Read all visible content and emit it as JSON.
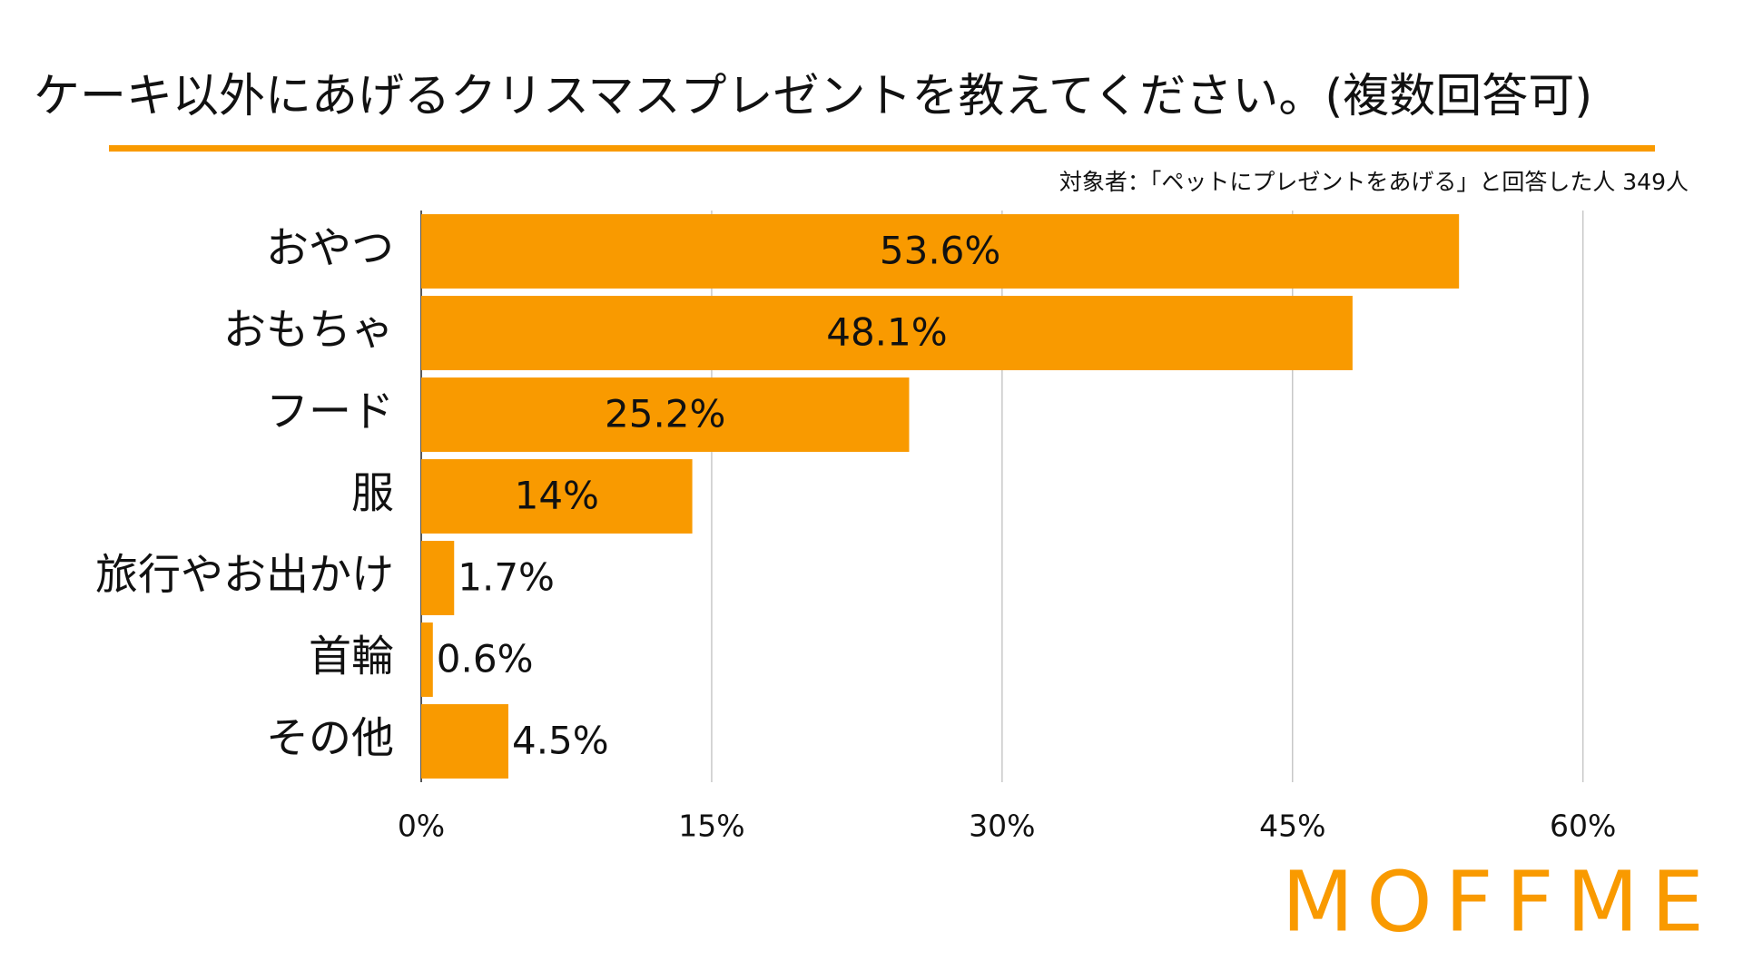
{
  "chart_data": {
    "type": "bar",
    "orientation": "horizontal",
    "title": "ケーキ以外にあげるクリスマスプレゼントを教えてください。(複数回答可)",
    "subtitle": "対象者：「ペットにプレゼントをあげる」と回答した人 349人",
    "categories": [
      "おやつ",
      "おもちゃ",
      "フード",
      "服",
      "旅行やお出かけ",
      "首輪",
      "その他"
    ],
    "values": [
      53.6,
      48.1,
      25.2,
      14,
      1.7,
      0.6,
      4.5
    ],
    "value_labels": [
      "53.6%",
      "48.1%",
      "25.2%",
      "14%",
      "1.7%",
      "0.6%",
      "4.5%"
    ],
    "color": "#f99a00",
    "xlim": [
      0,
      64
    ],
    "xticks": [
      {
        "value": 0,
        "label": "0%"
      },
      {
        "value": 15,
        "label": "15%"
      },
      {
        "value": 30,
        "label": "30%"
      },
      {
        "value": 45,
        "label": "45%"
      },
      {
        "value": 60,
        "label": "60%"
      }
    ],
    "grid": true
  },
  "logo": "MOFFME"
}
